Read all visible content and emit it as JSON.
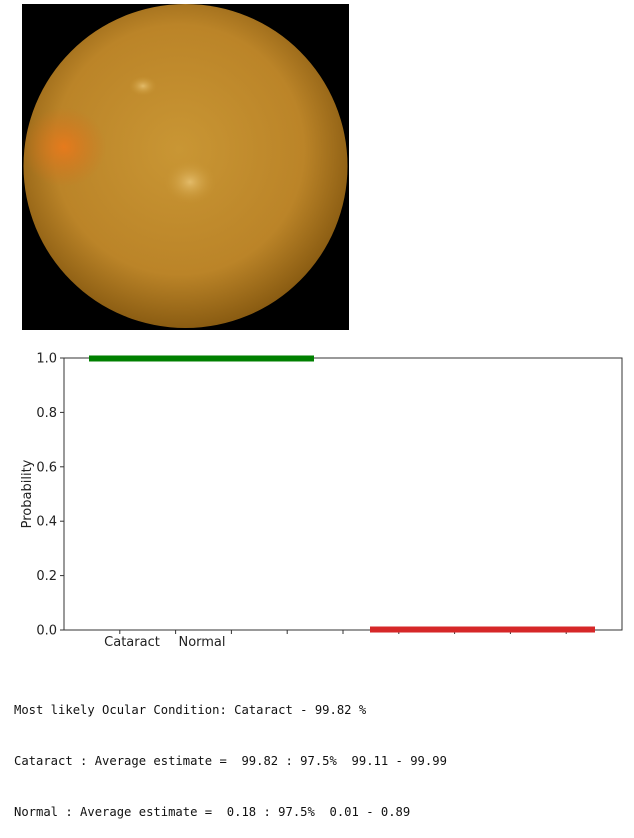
{
  "image": {
    "alt": "retina fundus photograph",
    "colors": {
      "fundus": "#c08a2c",
      "fundus_edge": "#8a5c12",
      "hotspot": "#e0701c",
      "background": "#000000"
    }
  },
  "chart_data": {
    "type": "bar",
    "categories": [
      "Cataract",
      "Normal"
    ],
    "values": [
      0.9982,
      0.0018
    ],
    "colors": [
      "#008000",
      "#d62728"
    ],
    "title": "",
    "xlabel": "",
    "ylabel": "Probability",
    "ylim": [
      0.0,
      1.0
    ],
    "yticks": [
      "0.0",
      "0.2",
      "0.4",
      "0.6",
      "0.8",
      "1.0"
    ],
    "xticks_labeled": [
      "Cataract",
      "Normal"
    ],
    "grid": false,
    "legend": "none"
  },
  "output": {
    "lines": [
      "Most likely Ocular Condition: Cataract - 99.82 %",
      "Cataract : Average estimate =  99.82 : 97.5%  99.11 - 99.99",
      "Normal : Average estimate =  0.18 : 97.5%  0.01 - 0.89"
    ]
  }
}
